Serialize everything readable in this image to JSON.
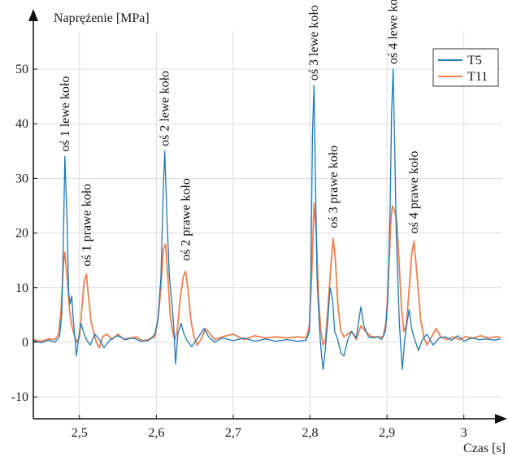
{
  "chart_data": {
    "type": "line",
    "ylabel": "Naprężenie [MPa]",
    "xlabel": "Czas [s]",
    "xlim": [
      2.44,
      3.05
    ],
    "ylim": [
      -14,
      57
    ],
    "x_ticks": [
      2.5,
      2.6,
      2.7,
      2.8,
      2.9,
      3.0
    ],
    "x_tick_labels": [
      "2,5",
      "2,6",
      "2,7",
      "2,8",
      "2,9",
      "3"
    ],
    "y_ticks": [
      -10,
      0,
      10,
      20,
      30,
      40,
      50
    ],
    "y_tick_labels": [
      "-10",
      "0",
      "10",
      "20",
      "30",
      "40",
      "50"
    ],
    "grid": true,
    "legend_position": "top-right",
    "colors": {
      "T5": "#1f77b4",
      "T11": "#f08050",
      "grid": "#d9dde2",
      "axis": "#111111"
    },
    "series": [
      {
        "name": "T5",
        "color": "#1f77b4",
        "points": [
          [
            2.44,
            0.3
          ],
          [
            2.45,
            -0.1
          ],
          [
            2.46,
            0.4
          ],
          [
            2.468,
            0.0
          ],
          [
            2.474,
            1.0
          ],
          [
            2.477,
            5.0
          ],
          [
            2.479,
            18.0
          ],
          [
            2.481,
            34.0
          ],
          [
            2.484,
            22.0
          ],
          [
            2.486,
            9.0
          ],
          [
            2.488,
            7.0
          ],
          [
            2.49,
            8.5
          ],
          [
            2.492,
            4.0
          ],
          [
            2.494,
            1.0
          ],
          [
            2.496,
            -2.5
          ],
          [
            2.499,
            1.0
          ],
          [
            2.502,
            3.5
          ],
          [
            2.505,
            2.0
          ],
          [
            2.509,
            0.5
          ],
          [
            2.514,
            -0.5
          ],
          [
            2.52,
            1.5
          ],
          [
            2.526,
            0.5
          ],
          [
            2.532,
            -1.0
          ],
          [
            2.54,
            0.5
          ],
          [
            2.55,
            1.2
          ],
          [
            2.56,
            0.5
          ],
          [
            2.57,
            0.8
          ],
          [
            2.58,
            0.2
          ],
          [
            2.59,
            0.3
          ],
          [
            2.598,
            1.5
          ],
          [
            2.602,
            4.0
          ],
          [
            2.606,
            12.0
          ],
          [
            2.609,
            28.0
          ],
          [
            2.611,
            35.0
          ],
          [
            2.614,
            22.0
          ],
          [
            2.617,
            12.0
          ],
          [
            2.619,
            9.0
          ],
          [
            2.621,
            6.0
          ],
          [
            2.623,
            2.0
          ],
          [
            2.625,
            -4.0
          ],
          [
            2.628,
            1.5
          ],
          [
            2.632,
            3.5
          ],
          [
            2.636,
            1.5
          ],
          [
            2.64,
            0.3
          ],
          [
            2.646,
            -0.8
          ],
          [
            2.654,
            0.8
          ],
          [
            2.662,
            2.5
          ],
          [
            2.668,
            1.0
          ],
          [
            2.676,
            0.0
          ],
          [
            2.686,
            0.8
          ],
          [
            2.7,
            0.3
          ],
          [
            2.714,
            0.8
          ],
          [
            2.728,
            0.2
          ],
          [
            2.742,
            0.6
          ],
          [
            2.756,
            0.2
          ],
          [
            2.77,
            0.5
          ],
          [
            2.784,
            0.2
          ],
          [
            2.795,
            0.4
          ],
          [
            2.799,
            2.0
          ],
          [
            2.801,
            12.0
          ],
          [
            2.803,
            38.0
          ],
          [
            2.805,
            47.0
          ],
          [
            2.807,
            30.0
          ],
          [
            2.809,
            12.0
          ],
          [
            2.811,
            6.0
          ],
          [
            2.813,
            1.0
          ],
          [
            2.815,
            -2.5
          ],
          [
            2.817,
            -5.0
          ],
          [
            2.82,
            -1.0
          ],
          [
            2.823,
            4.0
          ],
          [
            2.826,
            10.0
          ],
          [
            2.829,
            8.0
          ],
          [
            2.832,
            2.0
          ],
          [
            2.836,
            0.5
          ],
          [
            2.84,
            -2.0
          ],
          [
            2.844,
            -2.5
          ],
          [
            2.849,
            0.5
          ],
          [
            2.854,
            2.0
          ],
          [
            2.86,
            0.8
          ],
          [
            2.866,
            6.5
          ],
          [
            2.87,
            3.0
          ],
          [
            2.876,
            1.0
          ],
          [
            2.882,
            0.8
          ],
          [
            2.888,
            1.0
          ],
          [
            2.893,
            0.5
          ],
          [
            2.898,
            2.0
          ],
          [
            2.901,
            8.0
          ],
          [
            2.904,
            24.0
          ],
          [
            2.906,
            42.0
          ],
          [
            2.908,
            50.0
          ],
          [
            2.91,
            36.0
          ],
          [
            2.912,
            20.0
          ],
          [
            2.914,
            12.0
          ],
          [
            2.916,
            4.0
          ],
          [
            2.918,
            -1.0
          ],
          [
            2.92,
            -5.0
          ],
          [
            2.923,
            0.5
          ],
          [
            2.926,
            3.5
          ],
          [
            2.929,
            6.0
          ],
          [
            2.932,
            2.5
          ],
          [
            2.936,
            0.5
          ],
          [
            2.941,
            -1.5
          ],
          [
            2.946,
            0.5
          ],
          [
            2.952,
            1.5
          ],
          [
            2.96,
            -0.5
          ],
          [
            2.968,
            0.8
          ],
          [
            2.976,
            1.0
          ],
          [
            2.984,
            0.4
          ],
          [
            2.992,
            1.2
          ],
          [
            3.0,
            0.2
          ],
          [
            3.01,
            0.8
          ],
          [
            3.02,
            0.5
          ],
          [
            3.03,
            0.6
          ],
          [
            3.04,
            0.4
          ],
          [
            3.048,
            0.6
          ]
        ]
      },
      {
        "name": "T11",
        "color": "#f08050",
        "points": [
          [
            2.44,
            0.5
          ],
          [
            2.45,
            0.2
          ],
          [
            2.46,
            0.6
          ],
          [
            2.468,
            0.5
          ],
          [
            2.473,
            1.5
          ],
          [
            2.476,
            6.0
          ],
          [
            2.479,
            14.0
          ],
          [
            2.481,
            16.5
          ],
          [
            2.484,
            12.0
          ],
          [
            2.487,
            6.0
          ],
          [
            2.49,
            3.0
          ],
          [
            2.494,
            1.0
          ],
          [
            2.497,
            0.0
          ],
          [
            2.5,
            1.0
          ],
          [
            2.503,
            6.0
          ],
          [
            2.506,
            11.0
          ],
          [
            2.509,
            12.5
          ],
          [
            2.512,
            8.0
          ],
          [
            2.515,
            4.0
          ],
          [
            2.518,
            2.0
          ],
          [
            2.522,
            0.0
          ],
          [
            2.526,
            -1.0
          ],
          [
            2.53,
            1.0
          ],
          [
            2.536,
            1.5
          ],
          [
            2.542,
            0.5
          ],
          [
            2.55,
            1.5
          ],
          [
            2.558,
            0.5
          ],
          [
            2.566,
            0.8
          ],
          [
            2.574,
            1.0
          ],
          [
            2.582,
            0.3
          ],
          [
            2.59,
            0.5
          ],
          [
            2.598,
            1.0
          ],
          [
            2.602,
            4.0
          ],
          [
            2.606,
            10.0
          ],
          [
            2.609,
            17.0
          ],
          [
            2.612,
            18.0
          ],
          [
            2.615,
            12.0
          ],
          [
            2.618,
            5.0
          ],
          [
            2.621,
            2.0
          ],
          [
            2.624,
            0.5
          ],
          [
            2.627,
            2.0
          ],
          [
            2.631,
            8.0
          ],
          [
            2.635,
            12.0
          ],
          [
            2.638,
            13.0
          ],
          [
            2.641,
            10.0
          ],
          [
            2.645,
            4.0
          ],
          [
            2.649,
            1.0
          ],
          [
            2.653,
            -0.5
          ],
          [
            2.658,
            0.5
          ],
          [
            2.664,
            2.5
          ],
          [
            2.67,
            1.5
          ],
          [
            2.676,
            0.5
          ],
          [
            2.686,
            1.0
          ],
          [
            2.7,
            1.5
          ],
          [
            2.714,
            0.5
          ],
          [
            2.728,
            1.2
          ],
          [
            2.742,
            0.8
          ],
          [
            2.756,
            1.0
          ],
          [
            2.77,
            0.8
          ],
          [
            2.784,
            1.0
          ],
          [
            2.795,
            0.8
          ],
          [
            2.799,
            3.0
          ],
          [
            2.802,
            12.0
          ],
          [
            2.805,
            25.5
          ],
          [
            2.808,
            20.0
          ],
          [
            2.811,
            8.0
          ],
          [
            2.814,
            2.0
          ],
          [
            2.817,
            -0.5
          ],
          [
            2.82,
            0.5
          ],
          [
            2.823,
            6.0
          ],
          [
            2.827,
            14.0
          ],
          [
            2.83,
            19.0
          ],
          [
            2.833,
            15.0
          ],
          [
            2.836,
            7.0
          ],
          [
            2.84,
            2.0
          ],
          [
            2.844,
            1.0
          ],
          [
            2.849,
            1.5
          ],
          [
            2.854,
            2.0
          ],
          [
            2.86,
            0.5
          ],
          [
            2.866,
            3.0
          ],
          [
            2.872,
            2.0
          ],
          [
            2.88,
            1.0
          ],
          [
            2.888,
            1.0
          ],
          [
            2.895,
            1.0
          ],
          [
            2.899,
            4.0
          ],
          [
            2.902,
            12.0
          ],
          [
            2.905,
            22.0
          ],
          [
            2.907,
            25.0
          ],
          [
            2.91,
            24.0
          ],
          [
            2.913,
            22.0
          ],
          [
            2.916,
            14.0
          ],
          [
            2.919,
            6.0
          ],
          [
            2.922,
            2.0
          ],
          [
            2.925,
            3.0
          ],
          [
            2.929,
            10.0
          ],
          [
            2.932,
            16.0
          ],
          [
            2.935,
            18.5
          ],
          [
            2.938,
            14.0
          ],
          [
            2.941,
            9.0
          ],
          [
            2.944,
            4.0
          ],
          [
            2.948,
            1.0
          ],
          [
            2.952,
            -0.5
          ],
          [
            2.958,
            1.0
          ],
          [
            2.964,
            2.5
          ],
          [
            2.97,
            1.0
          ],
          [
            2.978,
            0.5
          ],
          [
            2.986,
            1.0
          ],
          [
            2.994,
            0.5
          ],
          [
            3.002,
            1.0
          ],
          [
            3.012,
            0.8
          ],
          [
            3.022,
            1.2
          ],
          [
            3.032,
            0.8
          ],
          [
            3.042,
            1.0
          ],
          [
            3.048,
            0.9
          ]
        ]
      }
    ],
    "annotations": [
      {
        "text": "oś 1 lewe koło",
        "x": 2.481,
        "y": 34
      },
      {
        "text": "oś 1 prawe koło",
        "x": 2.509,
        "y": 13
      },
      {
        "text": "oś 2 lewe koło",
        "x": 2.611,
        "y": 35
      },
      {
        "text": "oś 2 prawe koło",
        "x": 2.638,
        "y": 14
      },
      {
        "text": "oś 3 lewe koło",
        "x": 2.805,
        "y": 47
      },
      {
        "text": "oś 3 prawe koło",
        "x": 2.83,
        "y": 20
      },
      {
        "text": "oś 4 lewe koło",
        "x": 2.908,
        "y": 50
      },
      {
        "text": "oś 4 prawe koło",
        "x": 2.935,
        "y": 19
      }
    ]
  }
}
